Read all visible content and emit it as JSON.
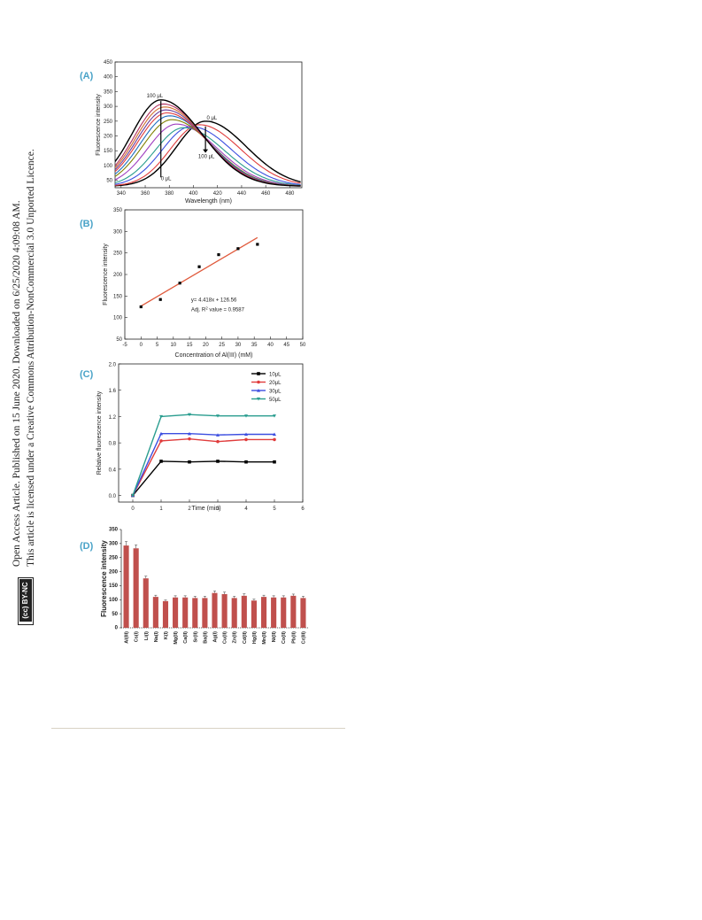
{
  "sidebar": {
    "line1": "Open Access Article. Published on 15 June 2020. Downloaded on 6/25/2020 4:09:08 AM.",
    "line2": "This article is licensed under a Creative Commons Attribution-NonCommercial 3.0 Unported Licence.",
    "badge": "(cc) BY-NC"
  },
  "colors": {
    "panel_label": "#4aa3c8",
    "bar": "#c0504d",
    "fit_line": "#e05a3c",
    "series_10": "#000000",
    "series_20": "#e03c3c",
    "series_30": "#3c4ee0",
    "series_50": "#2a9d8f"
  },
  "chart_data": [
    {
      "panel": "(A)",
      "type": "line",
      "xlabel": "Wavelength (nm)",
      "ylabel": "Fluorescence intensity",
      "xlim": [
        335,
        490
      ],
      "ylim": [
        25,
        450
      ],
      "xticks": [
        340,
        360,
        380,
        400,
        420,
        440,
        460,
        480
      ],
      "yticks": [
        50,
        100,
        150,
        200,
        250,
        300,
        350,
        400,
        450
      ],
      "annotations": [
        "100 μL",
        "0 μL",
        "0 μL",
        "100 μL"
      ],
      "series": [
        {
          "label": "0 μL",
          "peak_x": 410,
          "peak_y": 250,
          "color": "#000000"
        },
        {
          "peak_x": 405,
          "peak_y": 238,
          "color": "#e03c3c"
        },
        {
          "peak_x": 398,
          "peak_y": 232,
          "color": "#3c4ee0"
        },
        {
          "peak_x": 392,
          "peak_y": 228,
          "color": "#2a9d8f"
        },
        {
          "peak_x": 386,
          "peak_y": 240,
          "color": "#a040c0"
        },
        {
          "peak_x": 382,
          "peak_y": 255,
          "color": "#808000"
        },
        {
          "peak_x": 380,
          "peak_y": 268,
          "color": "#1f6fbf"
        },
        {
          "peak_x": 378,
          "peak_y": 278,
          "color": "#e03c3c"
        },
        {
          "peak_x": 377,
          "peak_y": 288,
          "color": "#6a3d9a"
        },
        {
          "peak_x": 376,
          "peak_y": 298,
          "color": "#d07030"
        },
        {
          "peak_x": 375,
          "peak_y": 308,
          "color": "#b03060"
        },
        {
          "label": "100 μL",
          "peak_x": 373,
          "peak_y": 322,
          "color": "#000000"
        }
      ]
    },
    {
      "panel": "(B)",
      "type": "scatter",
      "xlabel": "Concentration of Al(III) (mM)",
      "ylabel": "Fluorescence intensity",
      "xlim": [
        -5,
        50
      ],
      "ylim": [
        50,
        350
      ],
      "xticks": [
        -5,
        0,
        5,
        10,
        15,
        20,
        25,
        30,
        35,
        40,
        45,
        50
      ],
      "yticks": [
        50,
        100,
        150,
        200,
        250,
        300,
        350
      ],
      "x": [
        0,
        6,
        12,
        18,
        24,
        30,
        36
      ],
      "y": [
        125,
        142,
        180,
        218,
        246,
        260,
        270
      ],
      "fit": {
        "slope": 4.418,
        "intercept": 126.56,
        "x_range": [
          0,
          36
        ]
      },
      "annotations": [
        "y= 4.418x + 126.56",
        "Adj. R",
        "2",
        " value = 0.9587"
      ]
    },
    {
      "panel": "(C)",
      "type": "line",
      "xlabel": "Time (min)",
      "ylabel": "Relative fluorescence intensity",
      "xlim": [
        -0.5,
        6
      ],
      "ylim": [
        -0.1,
        2.0
      ],
      "xticks": [
        0,
        1,
        2,
        3,
        4,
        5,
        6
      ],
      "yticks": [
        0.0,
        0.4,
        0.8,
        1.2,
        1.6,
        2.0
      ],
      "ytick_labels": [
        "0.0",
        "0.4",
        "0.8",
        "1.2",
        "1.6",
        "2.0"
      ],
      "x": [
        0,
        1,
        2,
        3,
        4,
        5
      ],
      "legend_position": "top-right",
      "series": [
        {
          "name": "10μL",
          "values": [
            0,
            0.52,
            0.51,
            0.52,
            0.51,
            0.51
          ],
          "color": "#000000",
          "marker": "square"
        },
        {
          "name": "20μL",
          "values": [
            0,
            0.83,
            0.86,
            0.82,
            0.85,
            0.85
          ],
          "color": "#e03c3c",
          "marker": "circle"
        },
        {
          "name": "30μL",
          "values": [
            0,
            0.94,
            0.94,
            0.92,
            0.93,
            0.93
          ],
          "color": "#3c4ee0",
          "marker": "triangle-up"
        },
        {
          "name": "50μL",
          "values": [
            0,
            1.2,
            1.23,
            1.21,
            1.21,
            1.21
          ],
          "color": "#2a9d8f",
          "marker": "triangle-down"
        }
      ]
    },
    {
      "panel": "(D)",
      "type": "bar",
      "ylabel": "Fluorescence intensity",
      "ylim": [
        0,
        350
      ],
      "yticks": [
        0,
        50,
        100,
        150,
        200,
        250,
        300,
        350
      ],
      "categories": [
        "Al(III)",
        "Cs(I)",
        "Li(I)",
        "Na(I)",
        "K(I)",
        "Mg(II)",
        "Ca(II)",
        "Sr(II)",
        "Ba(II)",
        "Ag(I)",
        "Cu(II)",
        "Zn(II)",
        "Cd(II)",
        "Hg(II)",
        "Mn(II)",
        "Ni(II)",
        "Co(II)",
        "Pb(II)",
        "Cr(III)"
      ],
      "values": [
        293,
        283,
        176,
        110,
        95,
        108,
        108,
        106,
        106,
        124,
        120,
        106,
        114,
        97,
        110,
        108,
        108,
        114,
        106
      ],
      "errors": [
        14,
        12,
        8,
        6,
        4,
        6,
        6,
        6,
        6,
        7,
        7,
        6,
        7,
        5,
        6,
        6,
        6,
        6,
        6
      ]
    }
  ]
}
